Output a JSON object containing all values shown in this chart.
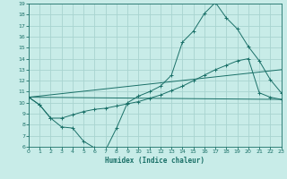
{
  "xlabel": "Humidex (Indice chaleur)",
  "bg_color": "#c8ece8",
  "grid_color": "#a8d4d0",
  "line_color": "#1a7068",
  "xlim": [
    0,
    23
  ],
  "ylim": [
    6,
    19
  ],
  "xticks": [
    0,
    1,
    2,
    3,
    4,
    5,
    6,
    7,
    8,
    9,
    10,
    11,
    12,
    13,
    14,
    15,
    16,
    17,
    18,
    19,
    20,
    21,
    22,
    23
  ],
  "yticks": [
    6,
    7,
    8,
    9,
    10,
    11,
    12,
    13,
    14,
    15,
    16,
    17,
    18,
    19
  ],
  "line1_x": [
    0,
    1,
    2,
    3,
    4,
    5,
    6,
    7,
    8,
    9,
    10,
    11,
    12,
    13,
    14,
    15,
    16,
    17,
    18,
    19,
    20,
    21,
    22,
    23
  ],
  "line1_y": [
    10.5,
    9.8,
    8.6,
    7.8,
    7.7,
    6.5,
    5.9,
    5.7,
    7.7,
    10.0,
    10.6,
    11.0,
    11.5,
    12.5,
    15.5,
    16.5,
    18.1,
    19.1,
    17.7,
    16.7,
    15.1,
    13.8,
    12.1,
    10.9
  ],
  "line2_x": [
    0,
    1,
    2,
    3,
    4,
    5,
    6,
    7,
    8,
    9,
    10,
    11,
    12,
    13,
    14,
    15,
    16,
    17,
    18,
    19,
    20,
    21,
    22,
    23
  ],
  "line2_y": [
    10.5,
    9.8,
    8.6,
    8.6,
    8.9,
    9.2,
    9.4,
    9.5,
    9.7,
    9.9,
    10.1,
    10.4,
    10.7,
    11.1,
    11.5,
    12.0,
    12.5,
    13.0,
    13.4,
    13.8,
    14.0,
    10.9,
    10.5,
    10.3
  ],
  "line3_x": [
    0,
    23
  ],
  "line3_y": [
    10.5,
    13.0
  ],
  "line4_x": [
    0,
    23
  ],
  "line4_y": [
    10.5,
    10.3
  ]
}
